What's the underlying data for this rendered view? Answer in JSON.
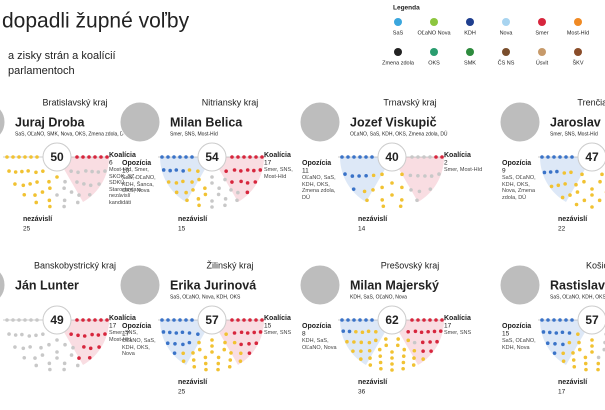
{
  "header": {
    "title": "dopadli župné voľby",
    "subtitle_lines": [
      "a zisky strán a koalícií",
      "parlamentoch"
    ]
  },
  "legend": {
    "title": "Legenda",
    "items": [
      {
        "label": "SaS",
        "color": "#3aa6dd"
      },
      {
        "label": "OĽaNO Nova",
        "color": "#8dc63f"
      },
      {
        "label": "KDH",
        "color": "#1f3f8f"
      },
      {
        "label": "Nova",
        "color": "#a8d4f0"
      },
      {
        "label": "Smer",
        "color": "#d7263d"
      },
      {
        "label": "Most-Híd",
        "color": "#f08a24"
      },
      {
        "label": "Zmena zdola",
        "color": "#222222"
      },
      {
        "label": "OKS",
        "color": "#2a9d6f"
      },
      {
        "label": "SMK",
        "color": "#2e8b3e"
      },
      {
        "label": "ČS NS",
        "color": "#7a4e2d"
      },
      {
        "label": "Úsvit",
        "color": "#c79a6a"
      },
      {
        "label": "ŠKV",
        "color": "#8a4d2a"
      }
    ]
  },
  "panels": [
    {
      "region": "Bratislavský kraj",
      "name": "Juraj Droba",
      "parties": "SaS, OĽaNO, SMK, Nova, OKS, Zmena zdola, DÚ",
      "total": 50,
      "coalition": {
        "label": "Koalícia",
        "count": 6,
        "parties": "Most-Híd, Smer, SKOK, SZ, SDKÚ, Starostovia a nezávislí kandidáti"
      },
      "independents": {
        "label": "nezávislí",
        "count": 25
      }
    },
    {
      "region": "Nitriansky kraj",
      "name": "Milan Belica",
      "parties": "Smer, SNS, Most-Híd",
      "total": 54,
      "opposition": {
        "label": "Opozícia",
        "count": 10,
        "parties": "SaS, OĽaNO, KDH, Šanca, OKS, Nova"
      },
      "coalition": {
        "label": "Koalícia",
        "count": 17,
        "parties": "Smer, SNS, Most-Híd"
      },
      "independents": {
        "label": "nezávislí",
        "count": 15
      }
    },
    {
      "region": "Trnavský kraj",
      "name": "Jozef Viskupič",
      "parties": "OĽaNO, SaS, KDH, OKS, Zmena zdola, DÚ",
      "total": 40,
      "opposition": {
        "label": "Opozícia",
        "count": 11,
        "parties": "OĽaNO, SaS, KDH, OKS, Zmena zdola, DÚ"
      },
      "coalition": {
        "label": "Koalícia",
        "count": 2,
        "parties": "Smer, Most-Híd"
      },
      "independents": {
        "label": "nezávislí",
        "count": 14
      }
    },
    {
      "region": "Trenčiansky kraj",
      "name": "Jaroslav Baška",
      "parties": "Smer, SNS, Most-Híd",
      "total": 47,
      "opposition": {
        "label": "Opozícia",
        "count": 9,
        "parties": "SaS, OĽaNO, KDH, OKS, Nova, Zmena zdola, DÚ"
      },
      "independents": {
        "label": "nezávislí",
        "count": 22
      }
    },
    {
      "region": "Banskobystrický kraj",
      "name": "Ján Lunter",
      "total": 49,
      "coalition": {
        "label": "Koalícia",
        "count": 17,
        "parties": "Smer, SNS, Most-Híd"
      }
    },
    {
      "region": "Žilinský kraj",
      "name": "Erika Jurinová",
      "parties": "SaS, OĽaNO, Nova, KDH, OKS",
      "total": 57,
      "opposition": {
        "label": "Opozícia",
        "count": 17,
        "parties": "OĽaNO, SaS, KDH, OKS, Nova"
      },
      "coalition": {
        "label": "Koalícia",
        "count": 15,
        "parties": "Smer, SNS"
      },
      "independents": {
        "label": "nezávislí",
        "count": 25
      }
    },
    {
      "region": "Prešovský kraj",
      "name": "Milan Majerský",
      "parties": "KDH, SaS, OĽaNO, Nova",
      "total": 62,
      "opposition": {
        "label": "Opozícia",
        "count": 8,
        "parties": "KDH, SaS, OĽaNO, Nova"
      },
      "coalition": {
        "label": "Koalícia",
        "count": 17,
        "parties": "Smer, SNS"
      },
      "independents": {
        "label": "nezávislí",
        "count": 36
      }
    },
    {
      "region": "Košický kraj",
      "name": "Rastislav Trnka",
      "parties": "SaS, OĽaNO, KDH, OKS, Nova",
      "total": 57,
      "opposition": {
        "label": "Opozícia",
        "count": 15,
        "parties": "SaS, OĽaNO, KDH, Nova"
      },
      "independents": {
        "label": "nezávislí",
        "count": 17
      }
    }
  ]
}
